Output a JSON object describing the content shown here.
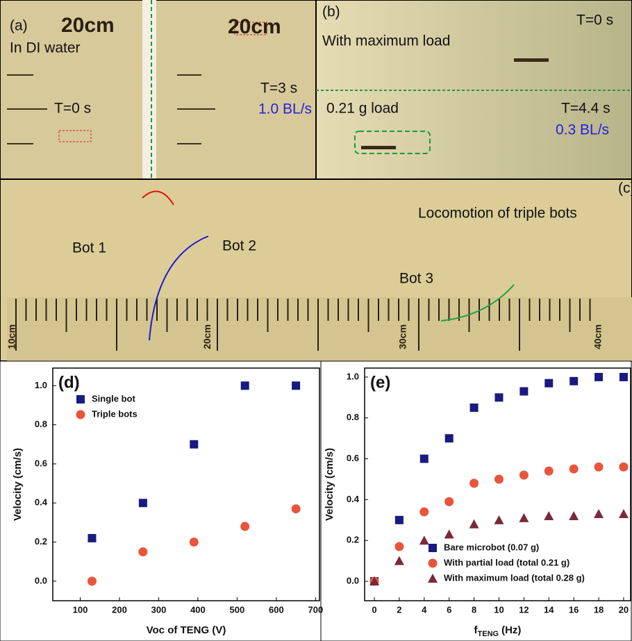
{
  "photos": {
    "a": {
      "label": "(a)",
      "ruler_left": "20cm",
      "medium": "In DI water",
      "time_left": "T=0 s",
      "ruler_right": "20cm",
      "time_right": "T=3 s",
      "speed": "1.0 BL/s"
    },
    "b": {
      "label": "(b)",
      "top_caption": "With maximum load",
      "top_time": "T=0 s",
      "bottom_caption": "0.21 g load",
      "bottom_time": "T=4.4 s",
      "speed": "0.3 BL/s"
    },
    "c": {
      "label": "(c)",
      "caption": "Locomotion of triple bots",
      "bot1": "Bot 1",
      "bot2": "Bot 2",
      "bot3": "Bot 3",
      "ruler": [
        "10cm",
        "20cm",
        "30cm",
        "40cm"
      ]
    }
  },
  "chart_data": [
    {
      "type": "scatter",
      "panel_label": "(d)",
      "xlabel": "Voc of TENG (V)",
      "ylabel": "Velocity (cm/s)",
      "xlim": [
        30,
        710
      ],
      "ylim": [
        -0.1,
        1.09
      ],
      "xticks": [
        100,
        200,
        300,
        400,
        500,
        600,
        700
      ],
      "yticks": [
        {
          "value": 0,
          "label": "0.0"
        },
        {
          "value": 0.2,
          "label": "0.2"
        },
        {
          "value": 0.4,
          "label": "0.4"
        },
        {
          "value": 0.6,
          "label": "0.6"
        },
        {
          "value": 0.8,
          "label": "0.8"
        },
        {
          "value": 1,
          "label": "1.0"
        }
      ],
      "legend": "upper left",
      "series": [
        {
          "name": "Single bot",
          "color": "#1a1a80",
          "marker": "square",
          "x": [
            130,
            260,
            390,
            520,
            650
          ],
          "values": [
            0.22,
            0.4,
            0.7,
            1.0,
            1.0
          ]
        },
        {
          "name": "Triple bots",
          "color": "#e8553a",
          "marker": "circle",
          "x": [
            130,
            260,
            390,
            520,
            650
          ],
          "values": [
            0,
            0.15,
            0.2,
            0.28,
            0.37
          ]
        }
      ]
    },
    {
      "type": "scatter",
      "panel_label": "(e)",
      "xlabel": [
        "f",
        "TENG",
        "(Hz)"
      ],
      "ylabel": "Velocity (cm/s)",
      "xlim": [
        -0.78,
        20.56
      ],
      "ylim": [
        -0.095,
        1.044
      ],
      "xticks": [
        0,
        2,
        4,
        6,
        8,
        10,
        12,
        14,
        16,
        18,
        20
      ],
      "yticks": [
        {
          "value": 0,
          "label": "0.0"
        },
        {
          "value": 0.2,
          "label": "0.2"
        },
        {
          "value": 0.4,
          "label": "0.4"
        },
        {
          "value": 0.6,
          "label": "0.6"
        },
        {
          "value": 0.8,
          "label": "0.8"
        },
        {
          "value": 1,
          "label": "1.0"
        }
      ],
      "legend": "lower right",
      "series": [
        {
          "name": "Bare microbot (0.07 g)",
          "color": "#1a1a80",
          "marker": "square",
          "x": [
            0,
            2,
            4,
            6,
            8,
            10,
            12,
            14,
            16,
            18,
            20
          ],
          "values": [
            0,
            0.3,
            0.6,
            0.7,
            0.85,
            0.9,
            0.93,
            0.97,
            0.98,
            1.0,
            1.0
          ]
        },
        {
          "name": "With partial load (total 0.21 g)",
          "color": "#e8553a",
          "marker": "circle",
          "x": [
            0,
            2,
            4,
            6,
            8,
            10,
            12,
            14,
            16,
            18,
            20
          ],
          "values": [
            0,
            0.17,
            0.34,
            0.39,
            0.48,
            0.5,
            0.52,
            0.54,
            0.55,
            0.56,
            0.56
          ]
        },
        {
          "name": "With maximum load (total 0.28 g)",
          "color": "#7a2a3a",
          "marker": "triangle",
          "x": [
            0,
            2,
            4,
            6,
            8,
            10,
            12,
            14,
            16,
            18,
            20
          ],
          "values": [
            0,
            0.1,
            0.2,
            0.23,
            0.28,
            0.3,
            0.31,
            0.32,
            0.32,
            0.33,
            0.33
          ]
        }
      ]
    }
  ]
}
